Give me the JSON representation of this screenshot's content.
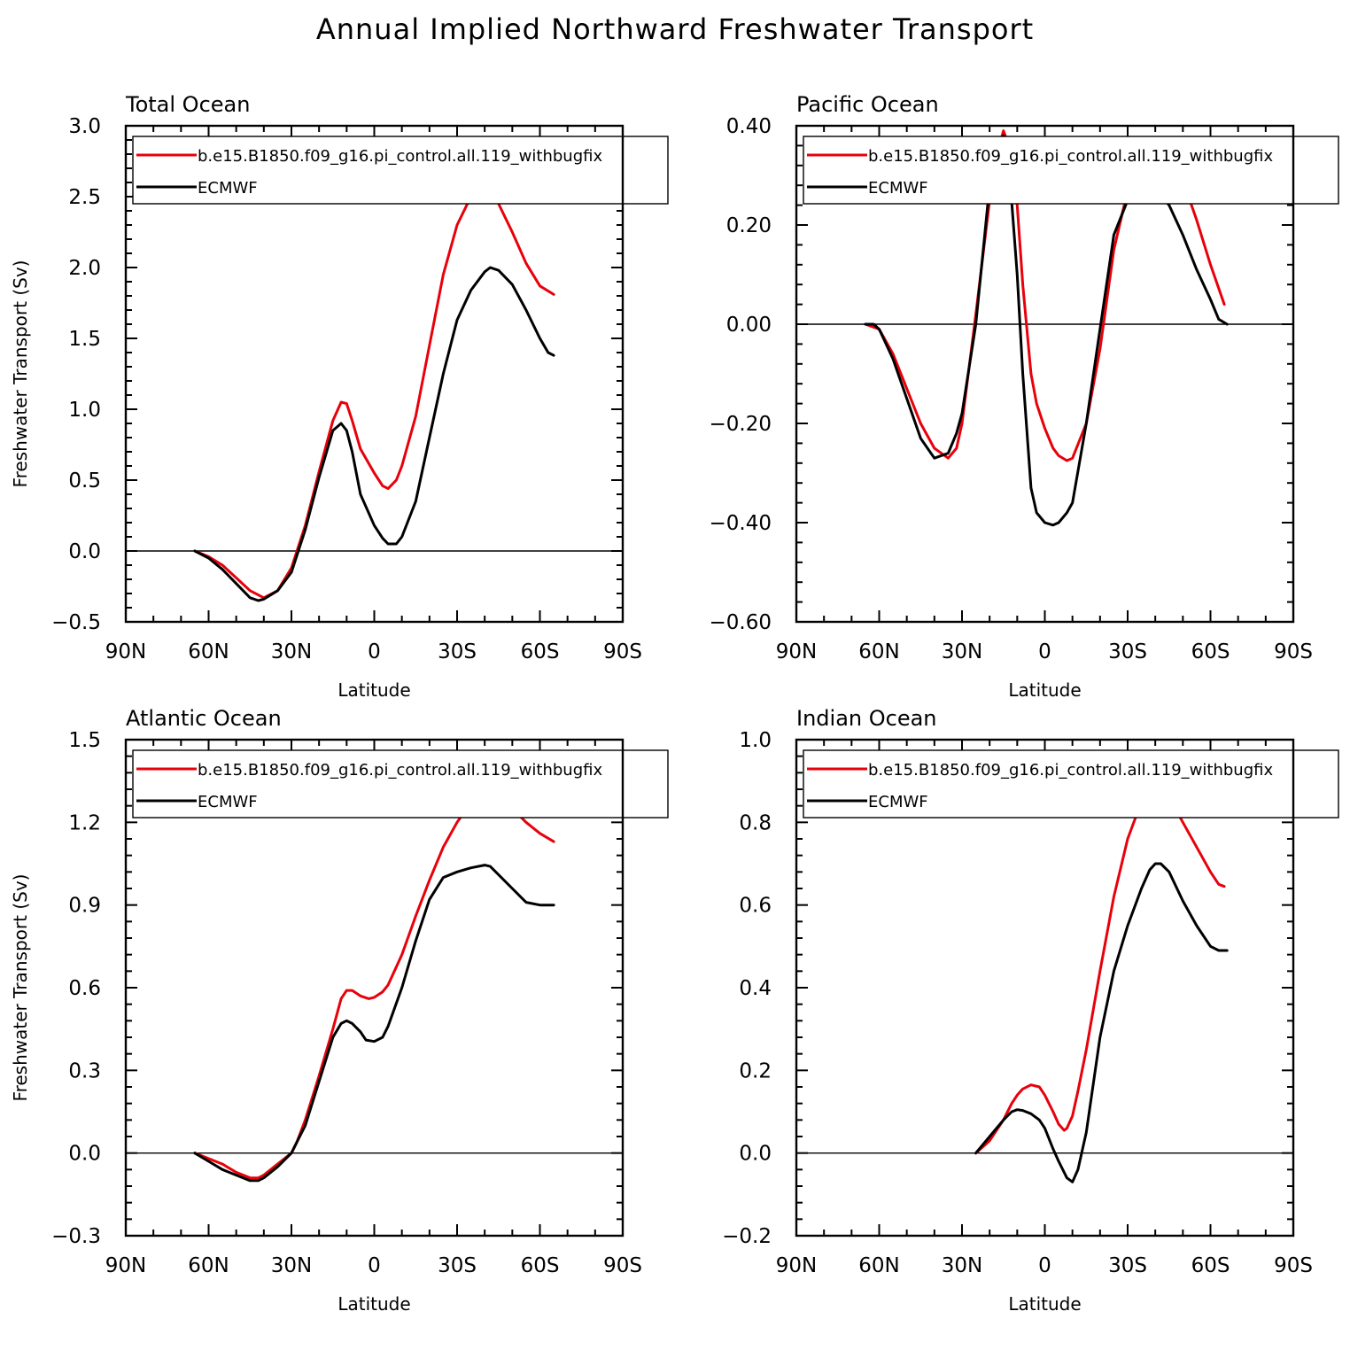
{
  "figure": {
    "title": "Annual Implied Northward Freshwater Transport"
  },
  "colors": {
    "model": "#e8000b",
    "obs": "#000000",
    "zero_line": "#000000"
  },
  "chart_data": [
    {
      "type": "line",
      "title": "Total Ocean",
      "xlabel": "Latitude",
      "ylabel": "Freshwater Transport (Sv)",
      "xlim": [
        90,
        -90
      ],
      "xticks": [
        90,
        60,
        30,
        0,
        -30,
        -60,
        -90
      ],
      "xtick_labels": [
        "90N",
        "60N",
        "30N",
        "0",
        "30S",
        "60S",
        "90S"
      ],
      "ylim": [
        -0.5,
        3.0
      ],
      "yticks": [
        -0.5,
        0.0,
        0.5,
        1.0,
        1.5,
        2.0,
        2.5,
        3.0
      ],
      "ytick_labels": [
        "−0.5",
        "0.0",
        "0.5",
        "1.0",
        "1.5",
        "2.0",
        "2.5",
        "3.0"
      ],
      "legend": "top",
      "series": [
        {
          "name": "b.e15.B1850.f09_g16.pi_control.all.119_withbugfix",
          "color": "#e8000b",
          "x": [
            65,
            60,
            55,
            50,
            45,
            40,
            35,
            30,
            25,
            20,
            15,
            12,
            10,
            8,
            5,
            0,
            -3,
            -5,
            -8,
            -10,
            -15,
            -20,
            -25,
            -30,
            -35,
            -40,
            -45,
            -50,
            -55,
            -60,
            -65
          ],
          "y": [
            0.0,
            -0.04,
            -0.1,
            -0.19,
            -0.28,
            -0.33,
            -0.28,
            -0.12,
            0.18,
            0.56,
            0.92,
            1.05,
            1.04,
            0.92,
            0.72,
            0.55,
            0.46,
            0.44,
            0.5,
            0.6,
            0.95,
            1.45,
            1.95,
            2.3,
            2.5,
            2.55,
            2.45,
            2.25,
            2.03,
            1.87,
            1.81
          ]
        },
        {
          "name": "ECMWF",
          "color": "#000000",
          "x": [
            65,
            60,
            55,
            50,
            45,
            42,
            40,
            35,
            30,
            25,
            20,
            15,
            12,
            10,
            8,
            5,
            0,
            -3,
            -5,
            -8,
            -10,
            -15,
            -20,
            -25,
            -30,
            -35,
            -40,
            -42,
            -45,
            -50,
            -55,
            -60,
            -63,
            -65
          ],
          "y": [
            0.0,
            -0.05,
            -0.13,
            -0.23,
            -0.33,
            -0.35,
            -0.34,
            -0.28,
            -0.15,
            0.15,
            0.52,
            0.85,
            0.9,
            0.85,
            0.7,
            0.4,
            0.18,
            0.09,
            0.05,
            0.05,
            0.1,
            0.35,
            0.8,
            1.25,
            1.63,
            1.84,
            1.97,
            2.0,
            1.98,
            1.88,
            1.7,
            1.5,
            1.4,
            1.38
          ]
        }
      ]
    },
    {
      "type": "line",
      "title": "Pacific Ocean",
      "xlabel": "Latitude",
      "ylabel": "",
      "xlim": [
        90,
        -90
      ],
      "xticks": [
        90,
        60,
        30,
        0,
        -30,
        -60,
        -90
      ],
      "xtick_labels": [
        "90N",
        "60N",
        "30N",
        "0",
        "30S",
        "60S",
        "90S"
      ],
      "ylim": [
        -0.6,
        0.4
      ],
      "yticks": [
        -0.6,
        -0.4,
        -0.2,
        0.0,
        0.2,
        0.4
      ],
      "ytick_labels": [
        "−0.60",
        "−0.40",
        "−0.20",
        "0.00",
        "0.20",
        "0.40"
      ],
      "legend": "top",
      "series": [
        {
          "name": "b.e15.B1850.f09_g16.pi_control.all.119_withbugfix",
          "color": "#e8000b",
          "x": [
            65,
            60,
            55,
            50,
            45,
            40,
            35,
            32,
            30,
            25,
            20,
            18,
            15,
            13,
            10,
            8,
            5,
            3,
            0,
            -3,
            -5,
            -8,
            -10,
            -15,
            -20,
            -25,
            -30,
            -35,
            -40,
            -45,
            -50,
            -55,
            -60,
            -65
          ],
          "y": [
            0.0,
            -0.01,
            -0.06,
            -0.13,
            -0.2,
            -0.25,
            -0.27,
            -0.25,
            -0.2,
            0.02,
            0.25,
            0.33,
            0.39,
            0.36,
            0.24,
            0.08,
            -0.1,
            -0.16,
            -0.21,
            -0.25,
            -0.265,
            -0.275,
            -0.27,
            -0.2,
            -0.05,
            0.15,
            0.27,
            0.33,
            0.35,
            0.34,
            0.29,
            0.21,
            0.12,
            0.04
          ]
        },
        {
          "name": "ECMWF",
          "color": "#000000",
          "x": [
            65,
            62,
            60,
            55,
            50,
            45,
            40,
            35,
            32,
            30,
            25,
            20,
            18,
            15,
            13,
            10,
            8,
            5,
            3,
            0,
            -3,
            -5,
            -8,
            -10,
            -15,
            -20,
            -25,
            -30,
            -35,
            -38,
            -40,
            -45,
            -50,
            -55,
            -60,
            -63,
            -66
          ],
          "y": [
            0.0,
            0.0,
            -0.01,
            -0.07,
            -0.15,
            -0.23,
            -0.27,
            -0.26,
            -0.22,
            -0.18,
            0.0,
            0.28,
            0.36,
            0.38,
            0.32,
            0.1,
            -0.1,
            -0.33,
            -0.38,
            -0.4,
            -0.405,
            -0.4,
            -0.38,
            -0.36,
            -0.2,
            -0.01,
            0.18,
            0.25,
            0.27,
            0.275,
            0.27,
            0.24,
            0.18,
            0.11,
            0.05,
            0.01,
            0.0
          ]
        }
      ]
    },
    {
      "type": "line",
      "title": "Atlantic Ocean",
      "xlabel": "Latitude",
      "ylabel": "Freshwater Transport (Sv)",
      "xlim": [
        90,
        -90
      ],
      "xticks": [
        90,
        60,
        30,
        0,
        -30,
        -60,
        -90
      ],
      "xtick_labels": [
        "90N",
        "60N",
        "30N",
        "0",
        "30S",
        "60S",
        "90S"
      ],
      "ylim": [
        -0.3,
        1.5
      ],
      "yticks": [
        -0.3,
        0.0,
        0.3,
        0.6,
        0.9,
        1.2,
        1.5
      ],
      "ytick_labels": [
        "−0.3",
        "0.0",
        "0.3",
        "0.6",
        "0.9",
        "1.2",
        "1.5"
      ],
      "legend": "top",
      "series": [
        {
          "name": "b.e15.B1850.f09_g16.pi_control.all.119_withbugfix",
          "color": "#e8000b",
          "x": [
            65,
            60,
            55,
            50,
            45,
            42,
            40,
            35,
            30,
            28,
            25,
            20,
            15,
            12,
            10,
            8,
            5,
            2,
            0,
            -3,
            -5,
            -10,
            -15,
            -20,
            -25,
            -30,
            -35,
            -40,
            -42,
            -45,
            -50,
            -55,
            -60,
            -65
          ],
          "y": [
            0.0,
            -0.02,
            -0.04,
            -0.07,
            -0.09,
            -0.09,
            -0.08,
            -0.04,
            0.0,
            0.04,
            0.12,
            0.28,
            0.45,
            0.56,
            0.59,
            0.59,
            0.57,
            0.56,
            0.565,
            0.585,
            0.61,
            0.72,
            0.86,
            0.99,
            1.11,
            1.2,
            1.27,
            1.305,
            1.31,
            1.3,
            1.25,
            1.2,
            1.16,
            1.13
          ]
        },
        {
          "name": "ECMWF",
          "color": "#000000",
          "x": [
            65,
            60,
            55,
            50,
            45,
            42,
            40,
            35,
            30,
            28,
            25,
            20,
            15,
            12,
            10,
            8,
            5,
            3,
            0,
            -3,
            -5,
            -10,
            -15,
            -20,
            -25,
            -30,
            -35,
            -40,
            -42,
            -45,
            -50,
            -55,
            -60,
            -65
          ],
          "y": [
            0.0,
            -0.03,
            -0.06,
            -0.08,
            -0.1,
            -0.1,
            -0.09,
            -0.05,
            0.0,
            0.04,
            0.1,
            0.26,
            0.42,
            0.47,
            0.48,
            0.47,
            0.44,
            0.41,
            0.405,
            0.42,
            0.46,
            0.6,
            0.77,
            0.92,
            1.0,
            1.02,
            1.035,
            1.045,
            1.04,
            1.01,
            0.96,
            0.91,
            0.9,
            0.9
          ]
        }
      ]
    },
    {
      "type": "line",
      "title": "Indian Ocean",
      "xlabel": "Latitude",
      "ylabel": "",
      "xlim": [
        90,
        -90
      ],
      "xticks": [
        90,
        60,
        30,
        0,
        -30,
        -60,
        -90
      ],
      "xtick_labels": [
        "90N",
        "60N",
        "30N",
        "0",
        "30S",
        "60S",
        "90S"
      ],
      "ylim": [
        -0.2,
        1.0
      ],
      "yticks": [
        -0.2,
        0.0,
        0.2,
        0.4,
        0.6,
        0.8,
        1.0
      ],
      "ytick_labels": [
        "−0.2",
        "0.0",
        "0.2",
        "0.4",
        "0.6",
        "0.8",
        "1.0"
      ],
      "legend": "top",
      "series": [
        {
          "name": "b.e15.B1850.f09_g16.pi_control.all.119_withbugfix",
          "color": "#e8000b",
          "x": [
            25,
            20,
            15,
            12,
            10,
            8,
            5,
            2,
            0,
            -3,
            -5,
            -7,
            -8,
            -10,
            -12,
            -15,
            -20,
            -25,
            -30,
            -35,
            -38,
            -40,
            -42,
            -45,
            -50,
            -55,
            -60,
            -63,
            -65
          ],
          "y": [
            0.0,
            0.03,
            0.08,
            0.12,
            0.14,
            0.155,
            0.165,
            0.16,
            0.14,
            0.1,
            0.07,
            0.055,
            0.06,
            0.09,
            0.15,
            0.25,
            0.44,
            0.62,
            0.76,
            0.85,
            0.88,
            0.885,
            0.88,
            0.86,
            0.8,
            0.74,
            0.68,
            0.65,
            0.645
          ]
        },
        {
          "name": "ECMWF",
          "color": "#000000",
          "x": [
            25,
            20,
            15,
            12,
            10,
            8,
            5,
            2,
            0,
            -3,
            -5,
            -8,
            -10,
            -12,
            -15,
            -20,
            -25,
            -30,
            -35,
            -38,
            -40,
            -42,
            -45,
            -50,
            -55,
            -60,
            -63,
            -66
          ],
          "y": [
            0.0,
            0.04,
            0.08,
            0.1,
            0.105,
            0.103,
            0.095,
            0.08,
            0.06,
            0.01,
            -0.02,
            -0.06,
            -0.07,
            -0.04,
            0.05,
            0.28,
            0.44,
            0.55,
            0.64,
            0.685,
            0.7,
            0.7,
            0.68,
            0.61,
            0.55,
            0.5,
            0.49,
            0.49
          ]
        }
      ]
    }
  ]
}
